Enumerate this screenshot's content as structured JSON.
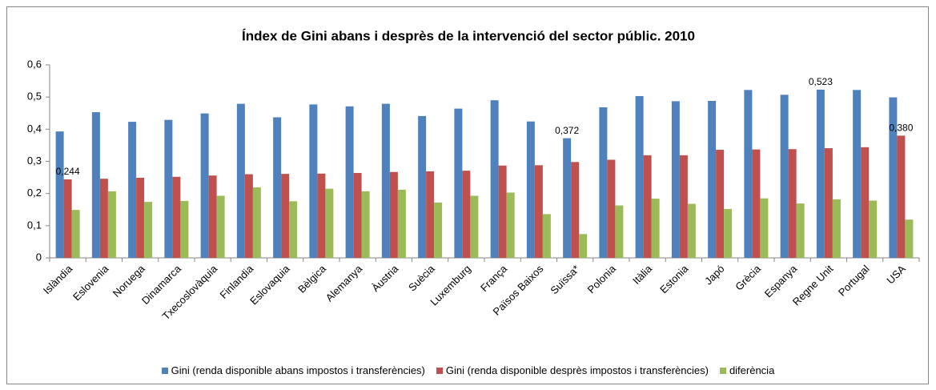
{
  "chart_data": {
    "type": "bar",
    "title": "Índex de Gini abans i desprès de la intervenció del sector públic. 2010",
    "categories": [
      "Islàndia",
      "Eslovenia",
      "Noruega",
      "Dinamarca",
      "Txecoslovàquia",
      "Finlandia",
      "Eslovaquia",
      "Bèlgica",
      "Alemanya",
      "Àustria",
      "Suècia",
      "Luxemburg",
      "França",
      "Països Baixos",
      "Suïssa*",
      "Polonia",
      "Itàlia",
      "Estonia",
      "Japó",
      "Grècia",
      "Espanya",
      "Regne Unit",
      "Portugal",
      "USA"
    ],
    "series": [
      {
        "name": "Gini (renda disponible abans impostos i transferències)",
        "color": "#4f81bd",
        "values": [
          0.393,
          0.453,
          0.423,
          0.429,
          0.449,
          0.479,
          0.437,
          0.477,
          0.471,
          0.479,
          0.441,
          0.464,
          0.49,
          0.424,
          0.372,
          0.468,
          0.503,
          0.487,
          0.488,
          0.522,
          0.507,
          0.523,
          0.522,
          0.499
        ],
        "value_labels": [
          null,
          null,
          null,
          null,
          null,
          null,
          null,
          null,
          null,
          null,
          null,
          null,
          null,
          null,
          "0,372",
          null,
          null,
          null,
          null,
          null,
          null,
          "0,523",
          null,
          null
        ]
      },
      {
        "name": "Gini (renda disponible desprès impostos i transferències)",
        "color": "#c0504d",
        "values": [
          0.244,
          0.246,
          0.249,
          0.252,
          0.256,
          0.26,
          0.261,
          0.262,
          0.264,
          0.267,
          0.269,
          0.271,
          0.287,
          0.288,
          0.298,
          0.305,
          0.319,
          0.319,
          0.336,
          0.337,
          0.338,
          0.341,
          0.344,
          0.38
        ],
        "value_labels": [
          "0,244",
          null,
          null,
          null,
          null,
          null,
          null,
          null,
          null,
          null,
          null,
          null,
          null,
          null,
          null,
          null,
          null,
          null,
          null,
          null,
          null,
          null,
          null,
          "0,380"
        ]
      },
      {
        "name": "diferència",
        "color": "#9bbb59",
        "values": [
          0.149,
          0.207,
          0.174,
          0.177,
          0.193,
          0.219,
          0.176,
          0.215,
          0.207,
          0.212,
          0.172,
          0.193,
          0.203,
          0.136,
          0.074,
          0.163,
          0.184,
          0.168,
          0.152,
          0.185,
          0.169,
          0.182,
          0.178,
          0.119
        ]
      }
    ],
    "ylim": [
      0,
      0.6
    ],
    "yticks": [
      0,
      {
        "value": 0.1,
        "label": "0,1"
      },
      {
        "value": 0.2,
        "label": "0,2"
      },
      {
        "value": 0.3,
        "label": "0,3"
      },
      {
        "value": 0.4,
        "label": "0,4"
      },
      {
        "value": 0.5,
        "label": "0,5"
      },
      {
        "value": 0.6,
        "label": "0,6"
      }
    ],
    "grid": false,
    "legend": "bottom"
  }
}
